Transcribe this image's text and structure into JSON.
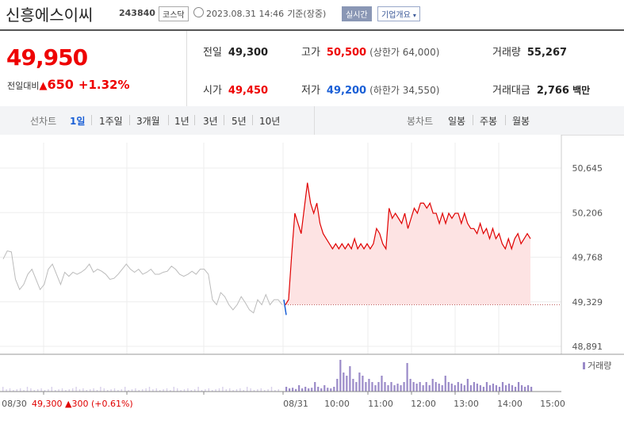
{
  "header": {
    "stock_name": "신흥에스이씨",
    "stock_code": "243840",
    "market": "코스닥",
    "datetime": "2023.08.31 14:46",
    "datetime_suffix": "기준(장중)",
    "realtime_label": "실시간",
    "company_button": "기업개요",
    "dropdown_glyph": "▾"
  },
  "quote": {
    "current_price": "49,950",
    "change_label": "전일대비",
    "change_arrow": "▲",
    "change_value": "650",
    "change_pct": "+1.32%",
    "prev_close_label": "전일",
    "prev_close": "49,300",
    "open_label": "시가",
    "open": "49,450",
    "high_label": "고가",
    "high": "50,500",
    "upper_limit": "(상한가 64,000)",
    "low_label": "저가",
    "low": "49,200",
    "lower_limit": "(하한가 34,550)",
    "volume_label": "거래량",
    "volume": "55,267",
    "turnover_label": "거래대금",
    "turnover": "2,766",
    "turnover_unit": "백만"
  },
  "tabs": {
    "line_label": "선차트",
    "periods": [
      "1일",
      "1주일",
      "3개월",
      "1년",
      "3년",
      "5년",
      "10년"
    ],
    "active": "1일",
    "candle_label": "봉차트",
    "candles": [
      "일봉",
      "주봉",
      "월봉"
    ]
  },
  "colors": {
    "up": "#e00000",
    "down": "#1a5fd6",
    "prev_day": "#bbbbbb",
    "volume": "#9a8ac8",
    "fill": "#fde3e3"
  },
  "chart_data": {
    "type": "line",
    "y_ticks": [
      "50,645",
      "50,206",
      "49,768",
      "49,329",
      "48,891"
    ],
    "ylim": [
      48891,
      50645
    ],
    "x_ticks": [
      "08/30",
      "08/31",
      "10:00",
      "11:00",
      "12:00",
      "13:00",
      "14:00",
      "15:00"
    ],
    "reference_price": 49300,
    "volume_legend": "거래량",
    "prev_day_footer": {
      "date": "08/30",
      "price": "49,300",
      "arrow": "▲",
      "change": "300",
      "pct": "(+0.61%)"
    },
    "series": [
      {
        "name": "08/30",
        "values": [
          49750,
          49830,
          49820,
          49550,
          49450,
          49500,
          49600,
          49650,
          49550,
          49450,
          49500,
          49650,
          49700,
          49600,
          49500,
          49620,
          49580,
          49620,
          49600,
          49620,
          49650,
          49700,
          49620,
          49650,
          49630,
          49600,
          49550,
          49560,
          49600,
          49650,
          49700,
          49650,
          49620,
          49650,
          49600,
          49620,
          49650,
          49600,
          49600,
          49620,
          49630,
          49680,
          49650,
          49600,
          49580,
          49600,
          49630,
          49600,
          49650,
          49650,
          49600,
          49350,
          49300,
          49420,
          49380,
          49300,
          49250,
          49300,
          49380,
          49320,
          49250,
          49220,
          49350,
          49300,
          49400,
          49300,
          49350,
          49350,
          49300
        ]
      },
      {
        "name": "08/31",
        "values": [
          49300,
          49350,
          49800,
          50200,
          50100,
          50000,
          50250,
          50500,
          50300,
          50200,
          50300,
          50100,
          50000,
          49950,
          49900,
          49850,
          49900,
          49850,
          49900,
          49850,
          49900,
          49850,
          49950,
          49850,
          49900,
          49850,
          49900,
          49850,
          49900,
          50050,
          50000,
          49900,
          49850,
          50250,
          50150,
          50200,
          50150,
          50100,
          50200,
          50050,
          50150,
          50250,
          50200,
          50300,
          50300,
          50250,
          50300,
          50200,
          50200,
          50100,
          50200,
          50100,
          50200,
          50150,
          50200,
          50200,
          50100,
          50200,
          50100,
          50050,
          50050,
          50000,
          50100,
          50000,
          50050,
          49950,
          50050,
          49950,
          50000,
          49900,
          49850,
          49950,
          49850,
          49950,
          50000,
          49900,
          49950,
          50000,
          49950
        ]
      },
      {
        "name": "거래량",
        "values": [
          0.15,
          0.1,
          0.12,
          0.08,
          0.2,
          0.1,
          0.15,
          0.1,
          0.12,
          0.3,
          0.15,
          0.1,
          0.2,
          0.12,
          0.1,
          0.15,
          0.4,
          1.0,
          0.6,
          0.5,
          0.8,
          0.4,
          0.3,
          0.6,
          0.5,
          0.3,
          0.4,
          0.3,
          0.2,
          0.3,
          0.5,
          0.3,
          0.2,
          0.3,
          0.2,
          0.25,
          0.2,
          0.3,
          0.9,
          0.4,
          0.3,
          0.25,
          0.3,
          0.2,
          0.3,
          0.2,
          0.4,
          0.3,
          0.25,
          0.2,
          0.5,
          0.3,
          0.25,
          0.2,
          0.3,
          0.25,
          0.2,
          0.4,
          0.2,
          0.3,
          0.25,
          0.2,
          0.15,
          0.3,
          0.2,
          0.25,
          0.2,
          0.15,
          0.3,
          0.2,
          0.25,
          0.2,
          0.15,
          0.3,
          0.2,
          0.15,
          0.2,
          0.15
        ]
      }
    ]
  }
}
